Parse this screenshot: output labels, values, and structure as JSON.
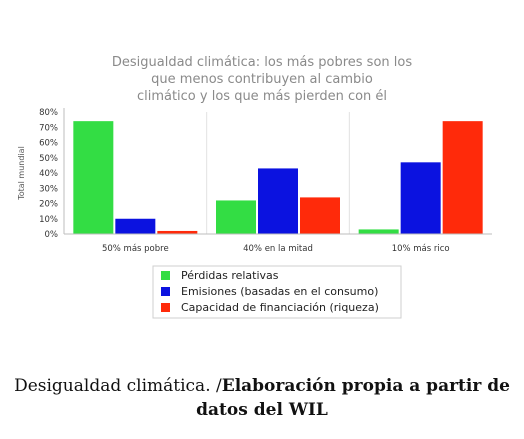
{
  "chart_data": {
    "type": "bar",
    "title": [
      "Desigualdad climática: los más pobres son los",
      "que menos contribuyen al cambio",
      "climático y los que más pierden con él"
    ],
    "ylabel": "Total mundial",
    "ylim": [
      0,
      80
    ],
    "yticks": [
      "0%",
      "10%",
      "20%",
      "30%",
      "40%",
      "50%",
      "60%",
      "70%",
      "80%"
    ],
    "categories": [
      "50% más pobre",
      "40% en la mitad",
      "10% más rico"
    ],
    "series": [
      {
        "name": "Pérdidas relativas",
        "color": "#33dd44",
        "values": [
          74,
          22,
          3
        ]
      },
      {
        "name": "Emisiones (basadas en el consumo)",
        "color": "#0b12e0",
        "values": [
          10,
          43,
          47
        ]
      },
      {
        "name": "Capacidad de financiación (riqueza)",
        "color": "#ff2a0a",
        "values": [
          2,
          24,
          74
        ]
      }
    ],
    "grid": "vertical",
    "legend": "bottom"
  },
  "caption": {
    "part1": "Desigualdad climática. /",
    "part2": "Elaboración propia a partir de datos del WIL"
  }
}
